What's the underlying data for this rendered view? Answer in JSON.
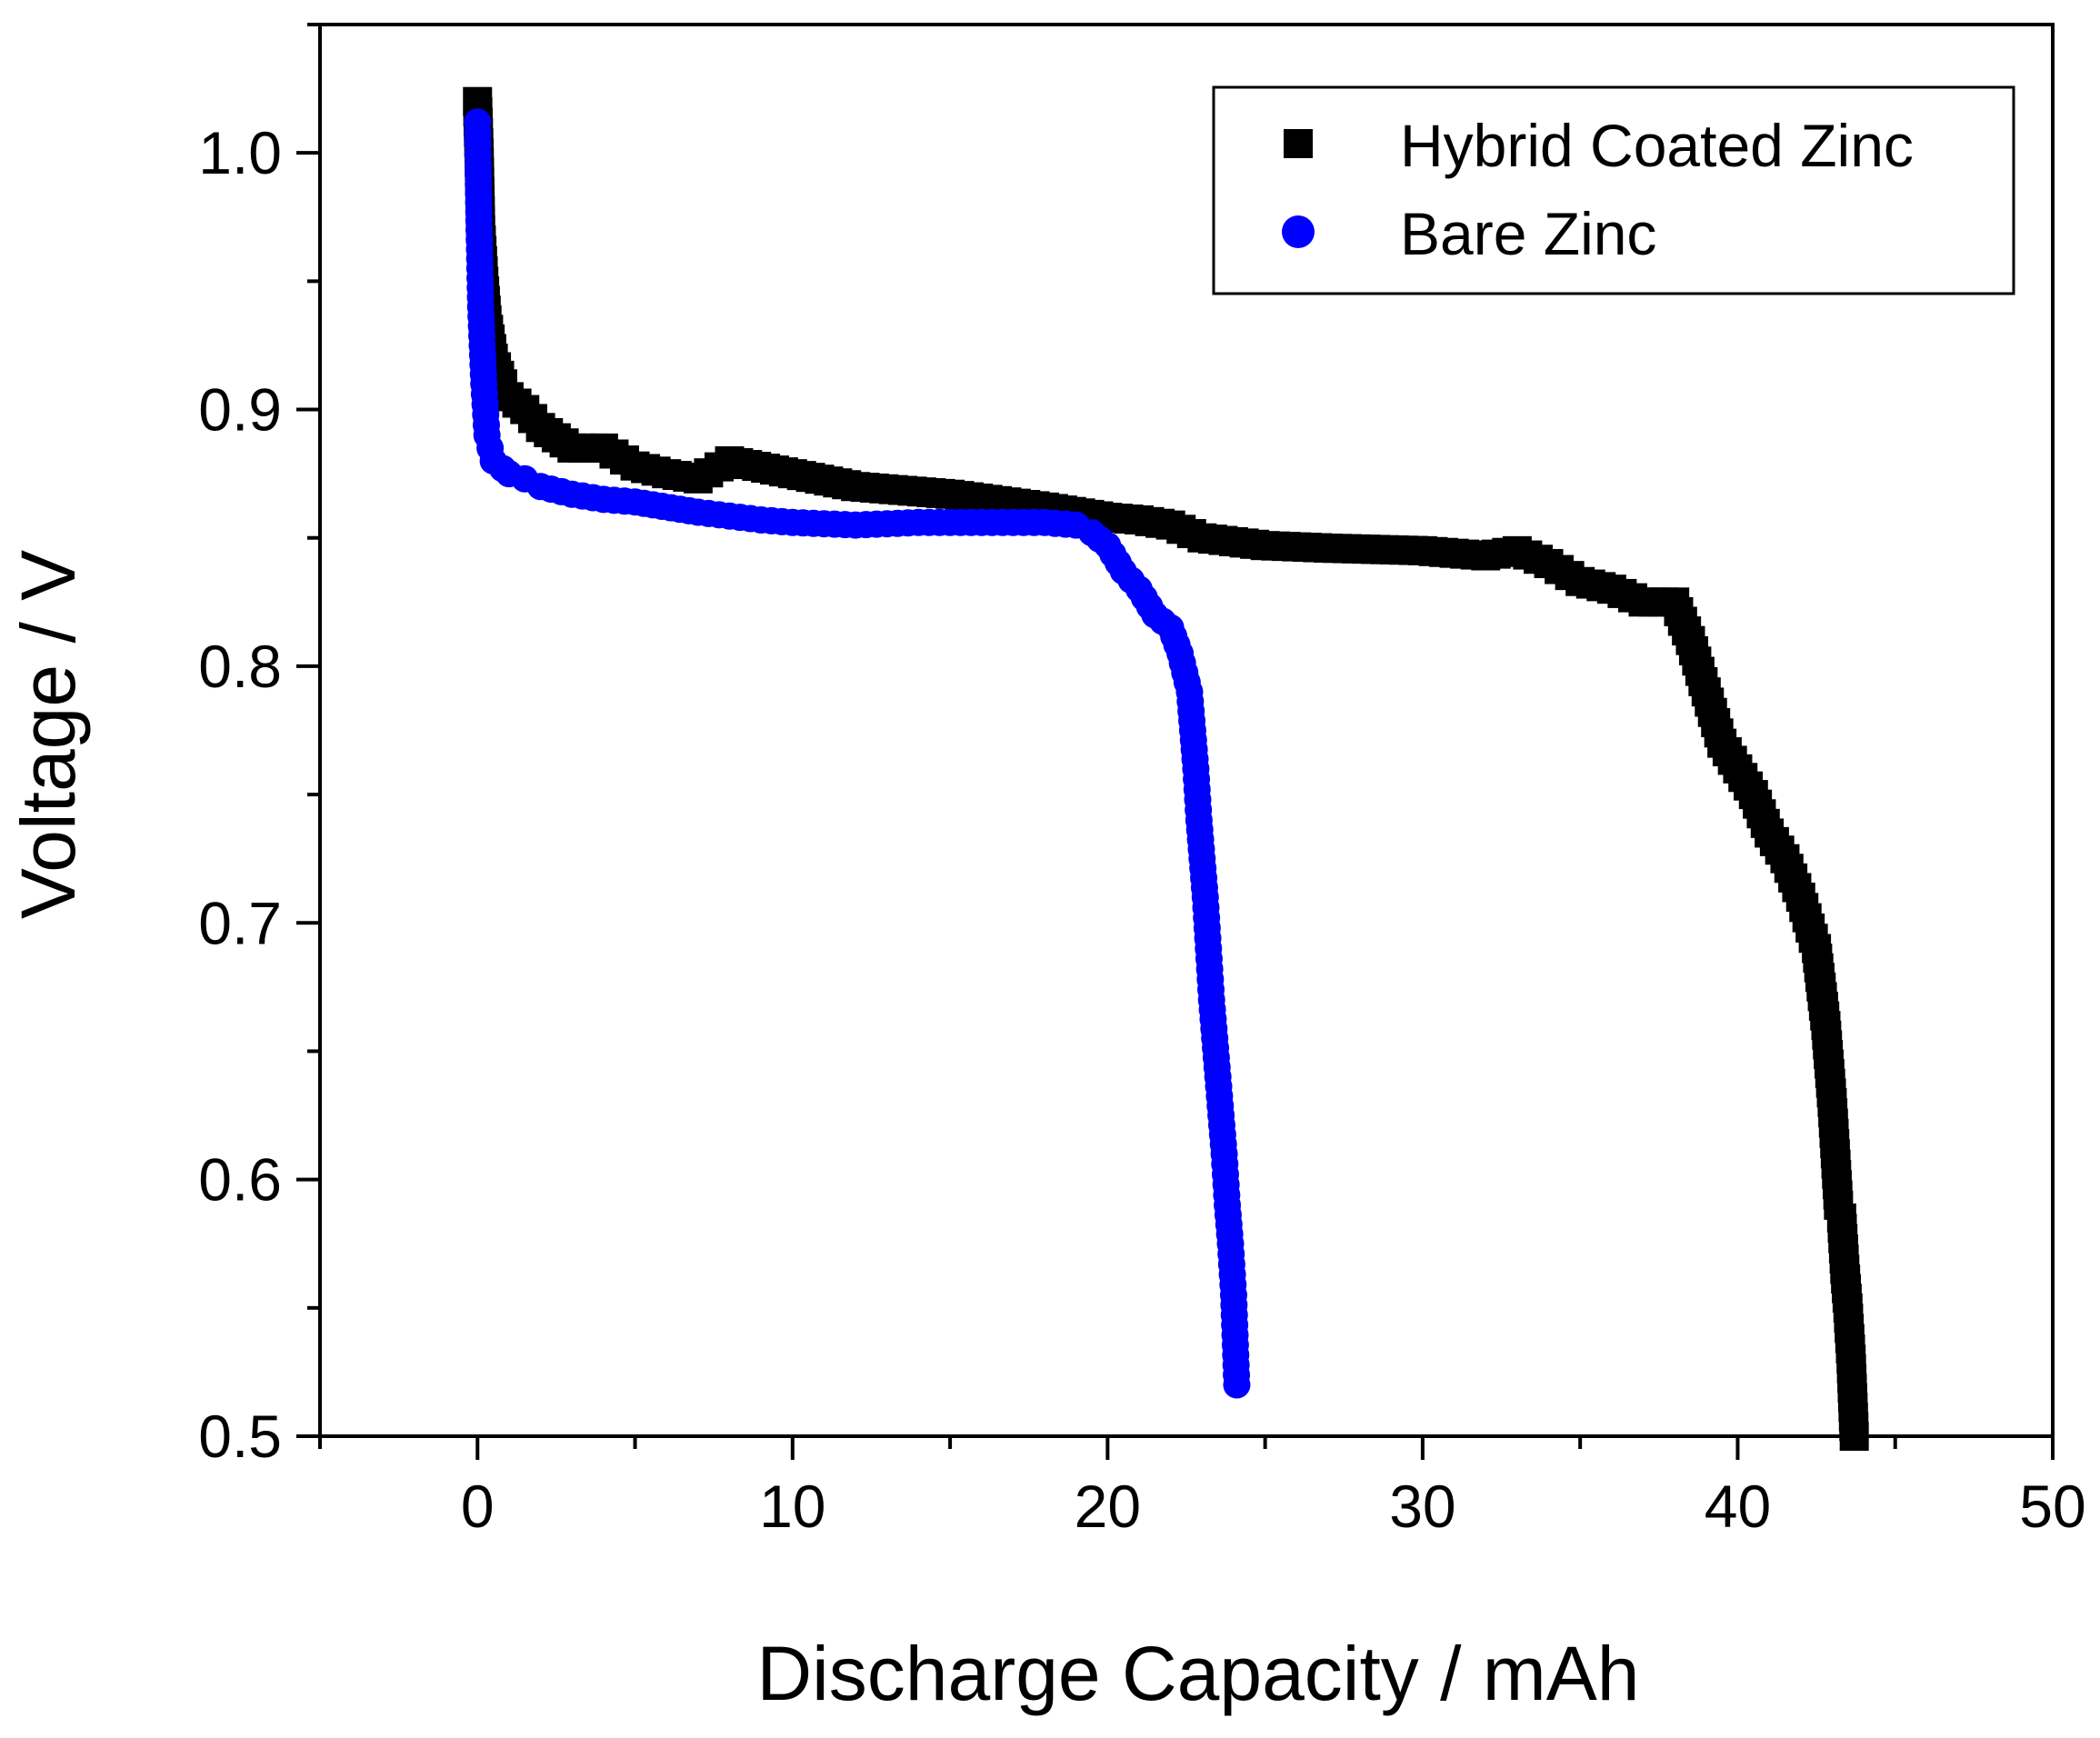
{
  "chart_data": {
    "type": "scatter",
    "title": "",
    "xlabel": "Discharge Capacity / mAh",
    "ylabel": "Voltage / V",
    "xlim": [
      -5,
      50
    ],
    "ylim": [
      0.5,
      1.05
    ],
    "xticks": [
      0,
      10,
      20,
      30,
      40,
      50
    ],
    "xtick_labels": [
      "0",
      "10",
      "20",
      "30",
      "40",
      "50"
    ],
    "yticks": [
      0.5,
      0.6,
      0.7,
      0.8,
      0.9,
      1.0
    ],
    "ytick_labels": [
      "0.5",
      "0.6",
      "0.7",
      "0.8",
      "0.9",
      "1.0"
    ],
    "grid": false,
    "legend_position": "top-right",
    "series": [
      {
        "name": "Hybrid Coated Zinc",
        "marker": "square",
        "color": "#000000",
        "x": [
          0,
          0.05,
          0.1,
          0.2,
          0.3,
          0.5,
          0.8,
          1.0,
          1.5,
          2.0,
          3.0,
          4.0,
          5.0,
          6.0,
          7.0,
          8.0,
          10.0,
          12.0,
          15.0,
          18.0,
          20.0,
          21.0,
          22.0,
          23.0,
          25.0,
          27.0,
          30.0,
          32.0,
          33.0,
          34.0,
          35.0,
          36.0,
          37.0,
          38.0,
          38.5,
          39.0,
          39.5,
          40.0,
          40.5,
          41.0,
          41.5,
          42.0,
          42.5,
          42.8,
          43.0,
          43.1,
          43.2,
          43.3,
          43.4,
          43.5,
          43.6,
          43.7
        ],
        "y": [
          1.02,
          1.0,
          0.97,
          0.95,
          0.935,
          0.92,
          0.91,
          0.905,
          0.9,
          0.893,
          0.885,
          0.885,
          0.878,
          0.875,
          0.873,
          0.88,
          0.875,
          0.87,
          0.867,
          0.862,
          0.858,
          0.857,
          0.855,
          0.85,
          0.847,
          0.846,
          0.845,
          0.843,
          0.845,
          0.84,
          0.833,
          0.83,
          0.825,
          0.825,
          0.81,
          0.79,
          0.77,
          0.76,
          0.75,
          0.735,
          0.725,
          0.71,
          0.69,
          0.66,
          0.63,
          0.61,
          0.59,
          0.585,
          0.565,
          0.55,
          0.53,
          0.5
        ],
        "values": [
          1.02,
          1.0,
          0.97,
          0.95,
          0.935,
          0.92,
          0.91,
          0.905,
          0.9,
          0.893,
          0.885,
          0.885,
          0.878,
          0.875,
          0.873,
          0.88,
          0.875,
          0.87,
          0.867,
          0.862,
          0.858,
          0.857,
          0.855,
          0.85,
          0.847,
          0.846,
          0.845,
          0.843,
          0.845,
          0.84,
          0.833,
          0.83,
          0.825,
          0.825,
          0.81,
          0.79,
          0.77,
          0.76,
          0.75,
          0.735,
          0.725,
          0.71,
          0.69,
          0.66,
          0.63,
          0.61,
          0.59,
          0.585,
          0.565,
          0.55,
          0.53,
          0.5
        ]
      },
      {
        "name": "Bare Zinc",
        "marker": "circle",
        "color": "#0000ff",
        "x": [
          0,
          0.02,
          0.05,
          0.1,
          0.2,
          0.3,
          0.5,
          0.8,
          1.0,
          1.5,
          2.0,
          3.0,
          4.0,
          5.0,
          7.0,
          9.0,
          10.0,
          12.0,
          14.0,
          16.0,
          18.0,
          19.0,
          19.5,
          20.0,
          20.5,
          21.0,
          21.5,
          22.0,
          22.3,
          22.6,
          22.8,
          22.9,
          23.0,
          23.1,
          23.2,
          23.3,
          23.4,
          23.5,
          23.6,
          23.7,
          23.8,
          23.9,
          24.0,
          24.1
        ],
        "y": [
          1.012,
          0.995,
          0.97,
          0.94,
          0.91,
          0.89,
          0.88,
          0.877,
          0.875,
          0.873,
          0.87,
          0.867,
          0.865,
          0.864,
          0.86,
          0.857,
          0.856,
          0.855,
          0.856,
          0.856,
          0.856,
          0.855,
          0.852,
          0.847,
          0.837,
          0.83,
          0.82,
          0.815,
          0.805,
          0.79,
          0.76,
          0.74,
          0.725,
          0.71,
          0.69,
          0.67,
          0.655,
          0.64,
          0.625,
          0.61,
          0.59,
          0.575,
          0.555,
          0.52
        ],
        "values": [
          1.012,
          0.995,
          0.97,
          0.94,
          0.91,
          0.89,
          0.88,
          0.877,
          0.875,
          0.873,
          0.87,
          0.867,
          0.865,
          0.864,
          0.86,
          0.857,
          0.856,
          0.855,
          0.856,
          0.856,
          0.856,
          0.855,
          0.852,
          0.847,
          0.837,
          0.83,
          0.82,
          0.815,
          0.805,
          0.79,
          0.76,
          0.74,
          0.725,
          0.71,
          0.69,
          0.67,
          0.655,
          0.64,
          0.625,
          0.61,
          0.59,
          0.575,
          0.555,
          0.52
        ]
      }
    ]
  }
}
